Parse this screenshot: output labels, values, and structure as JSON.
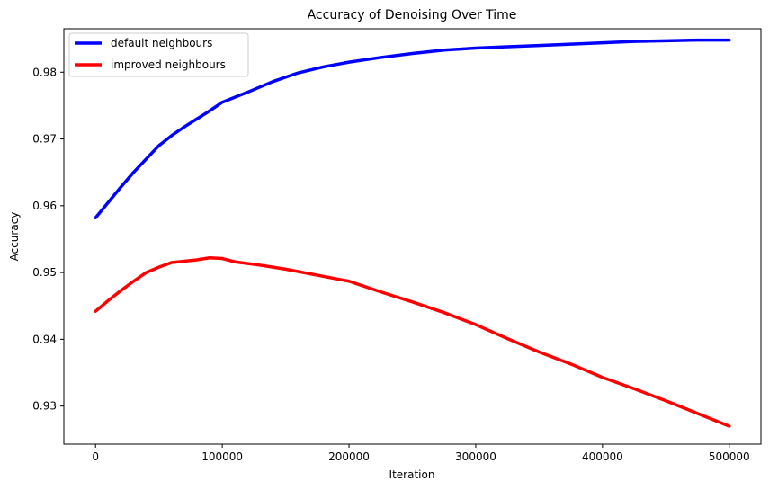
{
  "chart_data": {
    "type": "line",
    "title": "Accuracy of Denoising Over Time",
    "xlabel": "Iteration",
    "ylabel": "Accuracy",
    "xlim": [
      -25000,
      525000
    ],
    "ylim": [
      0.9243,
      0.9865
    ],
    "xticks": [
      0,
      100000,
      200000,
      300000,
      400000,
      500000
    ],
    "yticks": [
      0.93,
      0.94,
      0.95,
      0.96,
      0.97,
      0.98
    ],
    "grid": false,
    "legend_position": "top-left",
    "series": [
      {
        "name": "default neighbours",
        "color": "#0000ff",
        "x": [
          0,
          10000,
          20000,
          30000,
          40000,
          50000,
          60000,
          70000,
          80000,
          90000,
          100000,
          120000,
          140000,
          160000,
          180000,
          200000,
          225000,
          250000,
          275000,
          300000,
          325000,
          350000,
          375000,
          400000,
          425000,
          450000,
          475000,
          500000
        ],
        "y": [
          0.9582,
          0.9605,
          0.9628,
          0.965,
          0.967,
          0.969,
          0.9705,
          0.9718,
          0.973,
          0.9742,
          0.9755,
          0.977,
          0.9786,
          0.9799,
          0.9808,
          0.9815,
          0.9822,
          0.9828,
          0.9833,
          0.9836,
          0.9838,
          0.984,
          0.9842,
          0.9844,
          0.9846,
          0.9847,
          0.9848,
          0.9848
        ]
      },
      {
        "name": "improved neighbours",
        "color": "#ff0000",
        "x": [
          0,
          10000,
          20000,
          30000,
          40000,
          50000,
          60000,
          70000,
          80000,
          90000,
          100000,
          110000,
          130000,
          150000,
          175000,
          200000,
          225000,
          250000,
          275000,
          300000,
          325000,
          350000,
          375000,
          400000,
          425000,
          450000,
          475000,
          500000
        ],
        "y": [
          0.9442,
          0.9458,
          0.9473,
          0.9487,
          0.95,
          0.9508,
          0.9515,
          0.9517,
          0.9519,
          0.9522,
          0.9521,
          0.9516,
          0.9511,
          0.9505,
          0.9496,
          0.9487,
          0.9471,
          0.9456,
          0.944,
          0.9422,
          0.9401,
          0.9381,
          0.9363,
          0.9343,
          0.9326,
          0.9308,
          0.9289,
          0.927
        ]
      }
    ]
  }
}
